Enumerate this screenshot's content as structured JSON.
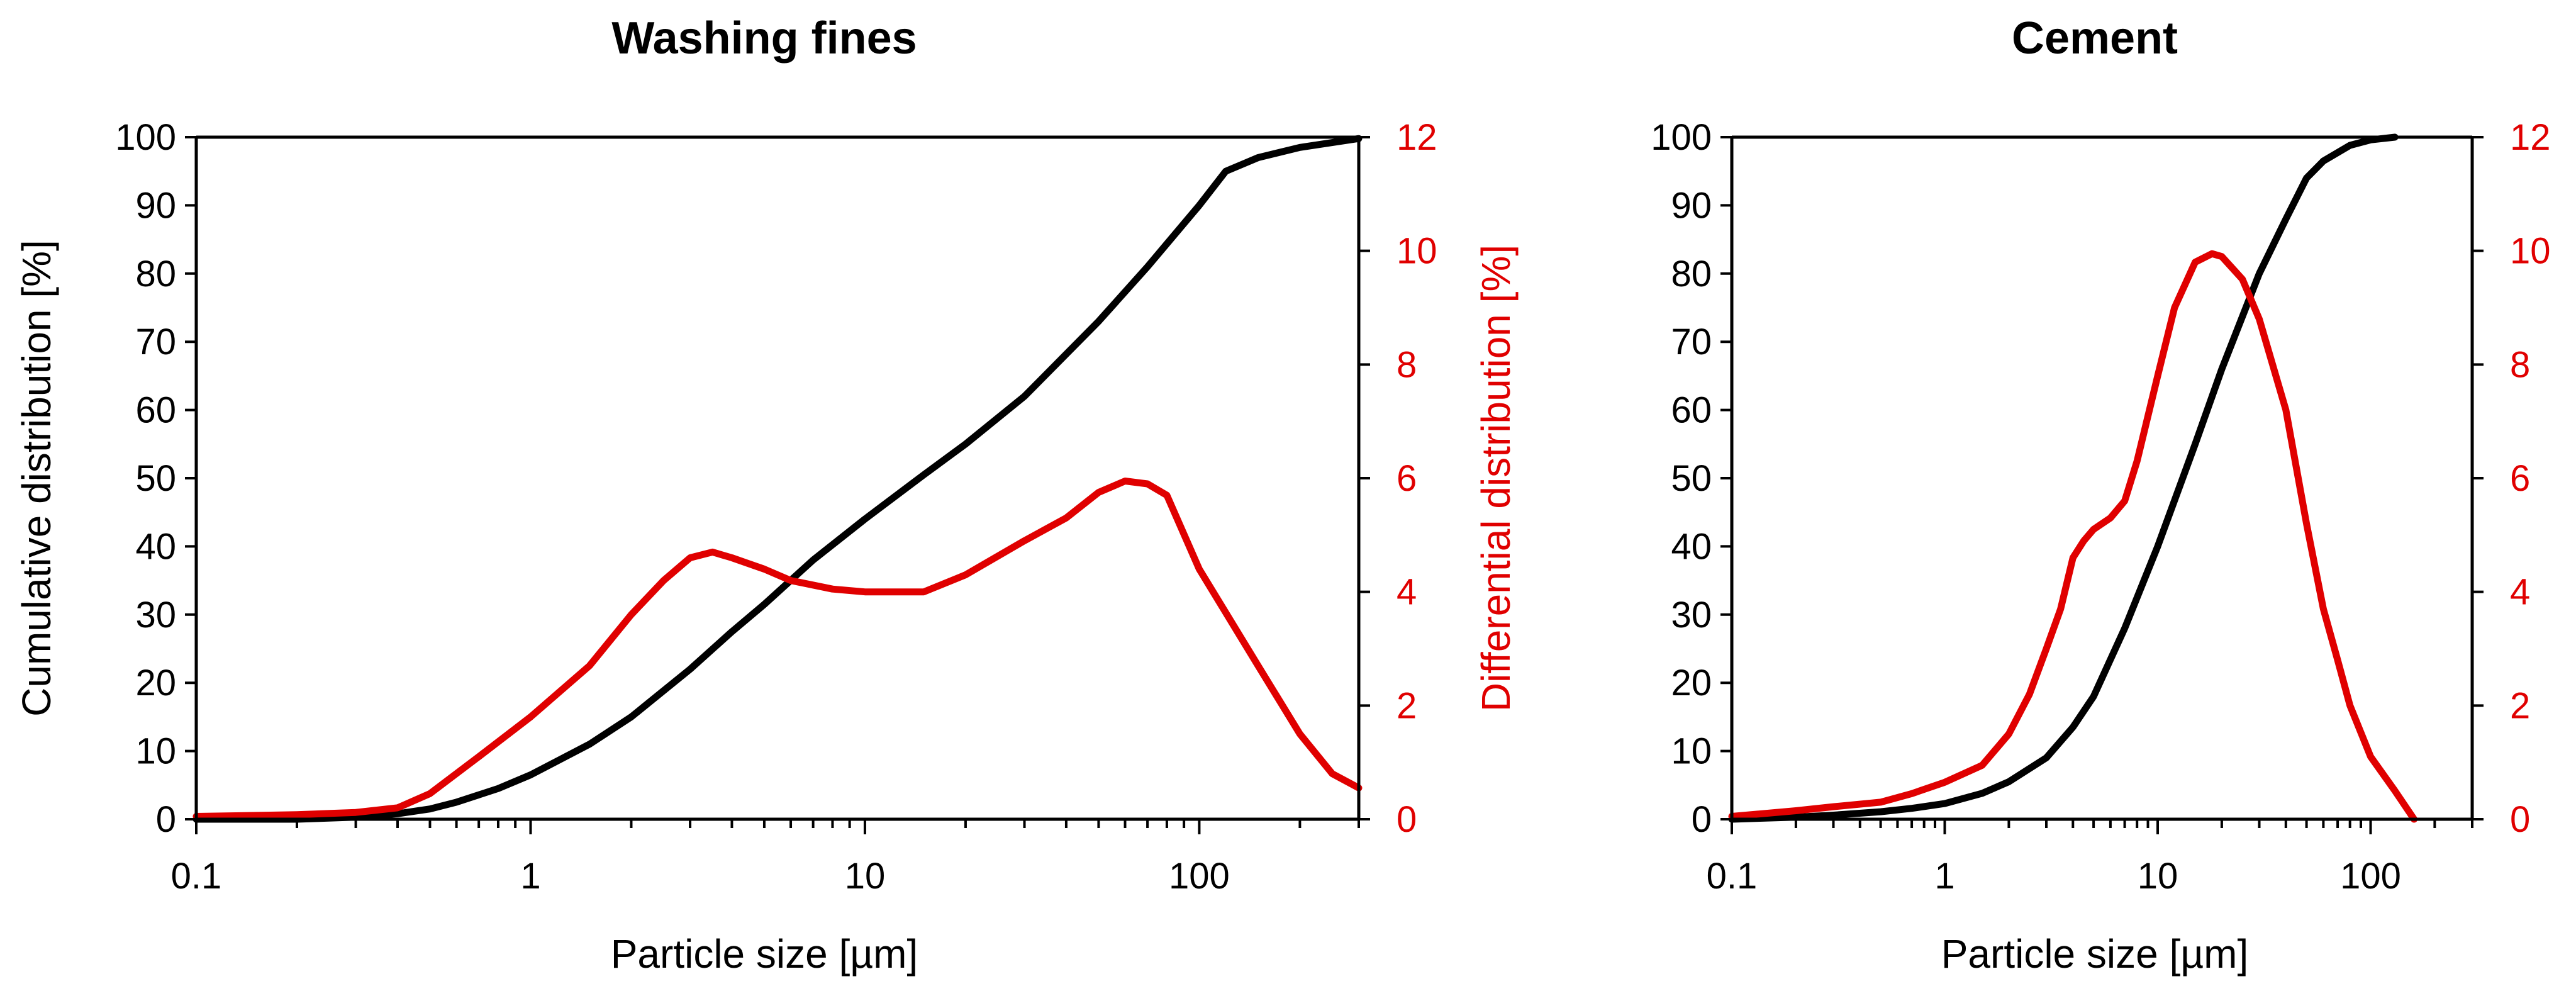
{
  "chart_data": [
    {
      "type": "line",
      "title": "Washing fines",
      "xlabel": "Particle size [µm]",
      "ylabel": "Cumulative distribution [%]",
      "y2label": "Differential distribution [%]",
      "xscale": "log",
      "xlim": [
        0.1,
        300
      ],
      "ylim": [
        0,
        100
      ],
      "y2lim": [
        0,
        12
      ],
      "x_ticks": [
        0.1,
        1,
        10,
        100
      ],
      "x_tick_labels": [
        "0.1",
        "1",
        "10",
        "100"
      ],
      "y_ticks": [
        0,
        10,
        20,
        30,
        40,
        50,
        60,
        70,
        80,
        90,
        100
      ],
      "y_tick_labels": [
        "0",
        "10",
        "20",
        "30",
        "40",
        "50",
        "60",
        "70",
        "80",
        "90",
        "100"
      ],
      "y2_ticks": [
        0,
        2,
        4,
        6,
        8,
        10,
        12
      ],
      "y2_tick_labels": [
        "0",
        "2",
        "4",
        "6",
        "8",
        "10",
        "12"
      ],
      "colors": {
        "cumulative": "#000000",
        "differential": "#e00000"
      },
      "series": [
        {
          "name": "Cumulative distribution",
          "axis": "left",
          "x": [
            0.1,
            0.2,
            0.3,
            0.4,
            0.5,
            0.6,
            0.8,
            1,
            1.5,
            2,
            3,
            4,
            5,
            7,
            10,
            15,
            20,
            30,
            50,
            70,
            100,
            120,
            150,
            200,
            300
          ],
          "y": [
            0,
            0,
            0.3,
            0.8,
            1.5,
            2.5,
            4.5,
            6.5,
            11,
            15,
            22,
            27.5,
            31.5,
            38,
            44,
            50.5,
            55,
            62,
            73,
            81,
            90,
            95,
            97,
            98.5,
            99.8
          ]
        },
        {
          "name": "Differential distribution",
          "axis": "right",
          "x": [
            0.1,
            0.2,
            0.3,
            0.4,
            0.5,
            0.7,
            1,
            1.5,
            2,
            2.5,
            3,
            3.5,
            4,
            5,
            6,
            8,
            10,
            15,
            20,
            30,
            40,
            50,
            60,
            70,
            80,
            100,
            150,
            200,
            250,
            300
          ],
          "y": [
            0.05,
            0.08,
            0.12,
            0.2,
            0.45,
            1.1,
            1.8,
            2.7,
            3.6,
            4.2,
            4.6,
            4.7,
            4.6,
            4.4,
            4.2,
            4.05,
            4.0,
            4.0,
            4.3,
            4.9,
            5.3,
            5.75,
            5.95,
            5.9,
            5.7,
            4.4,
            2.7,
            1.5,
            0.8,
            0.55
          ]
        }
      ]
    },
    {
      "type": "line",
      "title": "Cement",
      "xlabel": "Particle size [µm]",
      "ylabel": "",
      "y2label": "",
      "xscale": "log",
      "xlim": [
        0.1,
        300
      ],
      "ylim": [
        0,
        100
      ],
      "y2lim": [
        0,
        12
      ],
      "x_ticks": [
        0.1,
        1,
        10,
        100
      ],
      "x_tick_labels": [
        "0.1",
        "1",
        "10",
        "100"
      ],
      "y_ticks": [
        0,
        10,
        20,
        30,
        40,
        50,
        60,
        70,
        80,
        90,
        100
      ],
      "y_tick_labels": [
        "0",
        "10",
        "20",
        "30",
        "40",
        "50",
        "60",
        "70",
        "80",
        "90",
        "100"
      ],
      "y2_ticks": [
        0,
        2,
        4,
        6,
        8,
        10,
        12
      ],
      "y2_tick_labels": [
        "0",
        "2",
        "4",
        "6",
        "8",
        "10",
        "12"
      ],
      "colors": {
        "cumulative": "#000000",
        "differential": "#e00000"
      },
      "series": [
        {
          "name": "Cumulative distribution",
          "axis": "left",
          "x": [
            0.1,
            0.2,
            0.3,
            0.5,
            0.7,
            1,
            1.5,
            2,
            3,
            4,
            5,
            7,
            10,
            15,
            20,
            30,
            40,
            50,
            60,
            80,
            100,
            130
          ],
          "y": [
            0,
            0.3,
            0.6,
            1.1,
            1.6,
            2.3,
            3.8,
            5.5,
            9,
            13.5,
            18,
            28,
            40,
            55,
            66,
            80,
            88,
            94,
            96.5,
            98.8,
            99.6,
            100
          ]
        },
        {
          "name": "Differential distribution",
          "axis": "right",
          "x": [
            0.1,
            0.2,
            0.3,
            0.5,
            0.7,
            1,
            1.5,
            2,
            2.5,
            3,
            3.5,
            4,
            4.5,
            5,
            6,
            7,
            8,
            10,
            12,
            15,
            18,
            20,
            25,
            30,
            40,
            50,
            60,
            70,
            80,
            100,
            130,
            160
          ],
          "y": [
            0.05,
            0.15,
            0.22,
            0.3,
            0.45,
            0.65,
            0.95,
            1.5,
            2.2,
            3.0,
            3.7,
            4.6,
            4.9,
            5.1,
            5.3,
            5.6,
            6.3,
            7.8,
            9.0,
            9.8,
            9.95,
            9.9,
            9.5,
            8.8,
            7.2,
            5.2,
            3.7,
            2.8,
            2.0,
            1.1,
            0.5,
            0.0
          ]
        }
      ]
    }
  ]
}
